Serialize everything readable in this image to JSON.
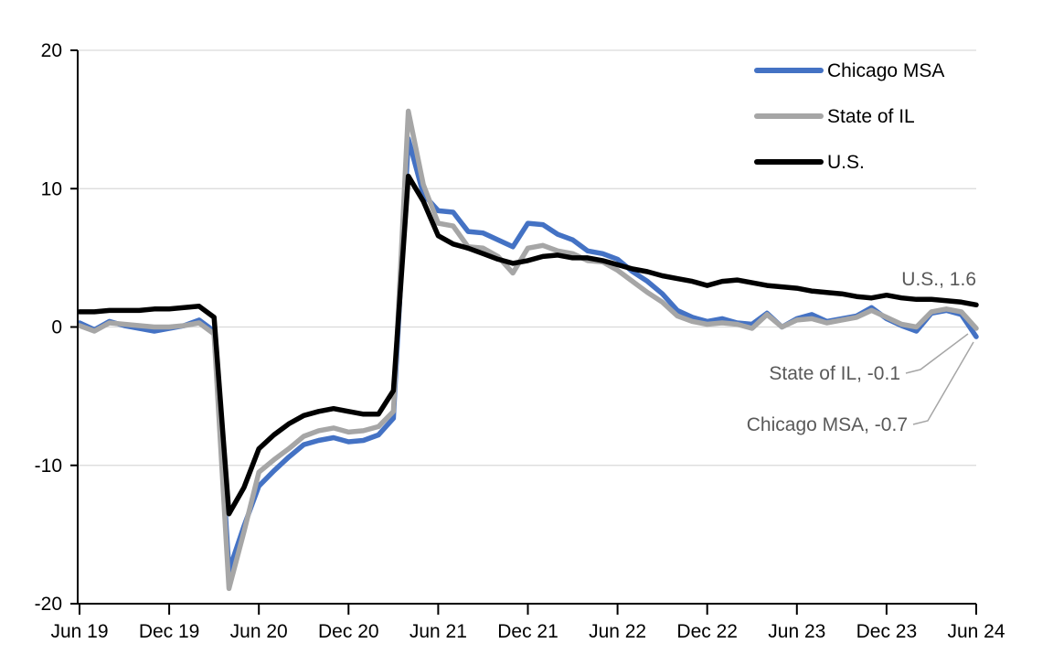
{
  "chart_data": {
    "type": "line",
    "title": "",
    "frequency": "monthly",
    "x_range": [
      "Jun 19",
      "Jun 24"
    ],
    "grid": "horizontal",
    "y_axis": {
      "min": -20,
      "max": 20,
      "ticks": [
        20,
        10,
        0,
        -10,
        -20
      ],
      "tick_labels": [
        "20",
        "10",
        "0",
        "-10",
        "-20"
      ]
    },
    "x_axis": {
      "ticks": [
        {
          "index": 0,
          "label": "Jun 19"
        },
        {
          "index": 6,
          "label": "Dec 19"
        },
        {
          "index": 12,
          "label": "Jun 20"
        },
        {
          "index": 18,
          "label": "Dec 20"
        },
        {
          "index": 24,
          "label": "Jun 21"
        },
        {
          "index": 30,
          "label": "Dec 21"
        },
        {
          "index": 36,
          "label": "Jun 22"
        },
        {
          "index": 42,
          "label": "Dec 22"
        },
        {
          "index": 48,
          "label": "Jun 23"
        },
        {
          "index": 54,
          "label": "Dec 23"
        },
        {
          "index": 60,
          "label": "Jun 24"
        }
      ]
    },
    "legend": {
      "position": "top-right",
      "entries": [
        "Chicago MSA",
        "State of IL",
        "U.S."
      ]
    },
    "series": [
      {
        "name": "Chicago MSA",
        "color": "#4472C4",
        "values": [
          0.3,
          -0.2,
          0.4,
          0.1,
          -0.1,
          -0.3,
          -0.1,
          0.1,
          0.5,
          -0.3,
          -17.6,
          -14.4,
          -11.5,
          -10.4,
          -9.4,
          -8.5,
          -8.2,
          -8.0,
          -8.3,
          -8.2,
          -7.8,
          -6.6,
          13.6,
          9.6,
          8.4,
          8.3,
          6.9,
          6.8,
          6.3,
          5.8,
          7.5,
          7.4,
          6.7,
          6.3,
          5.5,
          5.3,
          4.9,
          4.0,
          3.3,
          2.4,
          1.2,
          0.7,
          0.4,
          0.6,
          0.3,
          0.2,
          1.0,
          0.0,
          0.6,
          0.9,
          0.4,
          0.6,
          0.8,
          1.4,
          0.6,
          0.1,
          -0.3,
          1.0,
          1.2,
          0.9,
          -0.7
        ]
      },
      {
        "name": "State of IL",
        "color": "#A6A6A6",
        "values": [
          0.1,
          -0.3,
          0.3,
          0.2,
          0.1,
          0.0,
          0.0,
          0.1,
          0.3,
          -0.5,
          -18.9,
          -14.8,
          -10.5,
          -9.6,
          -8.8,
          -7.9,
          -7.5,
          -7.3,
          -7.6,
          -7.5,
          -7.2,
          -6.1,
          15.6,
          10.3,
          7.5,
          7.3,
          5.8,
          5.7,
          5.1,
          3.9,
          5.7,
          5.9,
          5.5,
          5.3,
          4.8,
          4.7,
          4.1,
          3.3,
          2.5,
          1.8,
          0.8,
          0.4,
          0.2,
          0.3,
          0.2,
          -0.1,
          0.9,
          0.0,
          0.5,
          0.6,
          0.3,
          0.5,
          0.7,
          1.2,
          0.7,
          0.2,
          0.0,
          1.1,
          1.3,
          1.1,
          -0.1
        ]
      },
      {
        "name": "U.S.",
        "color": "#000000",
        "values": [
          1.1,
          1.1,
          1.2,
          1.2,
          1.2,
          1.3,
          1.3,
          1.4,
          1.5,
          0.7,
          -13.5,
          -11.6,
          -8.8,
          -7.8,
          -7.0,
          -6.4,
          -6.1,
          -5.9,
          -6.1,
          -6.3,
          -6.3,
          -4.6,
          10.9,
          9.1,
          6.6,
          6.0,
          5.7,
          5.3,
          4.9,
          4.6,
          4.8,
          5.1,
          5.2,
          5.0,
          5.0,
          4.8,
          4.5,
          4.2,
          4.0,
          3.7,
          3.5,
          3.3,
          3.0,
          3.3,
          3.4,
          3.2,
          3.0,
          2.9,
          2.8,
          2.6,
          2.5,
          2.4,
          2.2,
          2.1,
          2.3,
          2.1,
          2.0,
          2.0,
          1.9,
          1.8,
          1.6
        ]
      }
    ],
    "annotations": [
      {
        "series": "U.S.",
        "text": "U.S., 1.6",
        "value": 1.6
      },
      {
        "series": "State of IL",
        "text": "State of IL, -0.1",
        "value": -0.1
      },
      {
        "series": "Chicago MSA",
        "text": "Chicago MSA, -0.7",
        "value": -0.7
      }
    ]
  },
  "colors": {
    "background": "#FFFFFF",
    "gridline": "#D9D9D9",
    "axis": "#000000",
    "tick_label": "#000000",
    "legend_label": "#000000",
    "annotation_text": "#595959",
    "leader_line": "#A6A6A6"
  }
}
